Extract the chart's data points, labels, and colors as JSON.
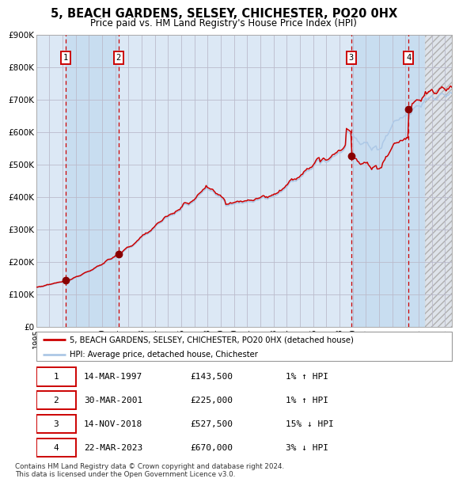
{
  "title": "5, BEACH GARDENS, SELSEY, CHICHESTER, PO20 0HX",
  "subtitle": "Price paid vs. HM Land Registry's House Price Index (HPI)",
  "xlim": [
    1995.0,
    2026.5
  ],
  "ylim": [
    0,
    900000
  ],
  "yticks": [
    0,
    100000,
    200000,
    300000,
    400000,
    500000,
    600000,
    700000,
    800000,
    900000
  ],
  "ytick_labels": [
    "£0",
    "£100K",
    "£200K",
    "£300K",
    "£400K",
    "£500K",
    "£600K",
    "£700K",
    "£800K",
    "£900K"
  ],
  "xtick_years": [
    1995,
    1996,
    1997,
    1998,
    1999,
    2000,
    2001,
    2002,
    2003,
    2004,
    2005,
    2006,
    2007,
    2008,
    2009,
    2010,
    2011,
    2012,
    2013,
    2014,
    2015,
    2016,
    2017,
    2018,
    2019,
    2020,
    2021,
    2022,
    2023,
    2024,
    2025,
    2026
  ],
  "hpi_line_color": "#adc8e6",
  "price_line_color": "#cc0000",
  "sale_dot_color": "#880000",
  "grid_color": "#bbbbcc",
  "bg_color": "#dce8f5",
  "sale_vline_color": "#cc0000",
  "purchase_band_color": "#c8ddf0",
  "legend_label_price": "5, BEACH GARDENS, SELSEY, CHICHESTER, PO20 0HX (detached house)",
  "legend_label_hpi": "HPI: Average price, detached house, Chichester",
  "transactions": [
    {
      "num": 1,
      "date": 1997.21,
      "price": 143500
    },
    {
      "num": 2,
      "date": 2001.24,
      "price": 225000
    },
    {
      "num": 3,
      "date": 2018.87,
      "price": 527500
    },
    {
      "num": 4,
      "date": 2023.22,
      "price": 670000
    }
  ],
  "table_rows": [
    [
      "1",
      "14-MAR-1997",
      "£143,500",
      "1% ↑ HPI"
    ],
    [
      "2",
      "30-MAR-2001",
      "£225,000",
      "1% ↑ HPI"
    ],
    [
      "3",
      "14-NOV-2018",
      "£527,500",
      "15% ↓ HPI"
    ],
    [
      "4",
      "22-MAR-2023",
      "£670,000",
      "3% ↓ HPI"
    ]
  ],
  "footnote": "Contains HM Land Registry data © Crown copyright and database right 2024.\nThis data is licensed under the Open Government Licence v3.0."
}
